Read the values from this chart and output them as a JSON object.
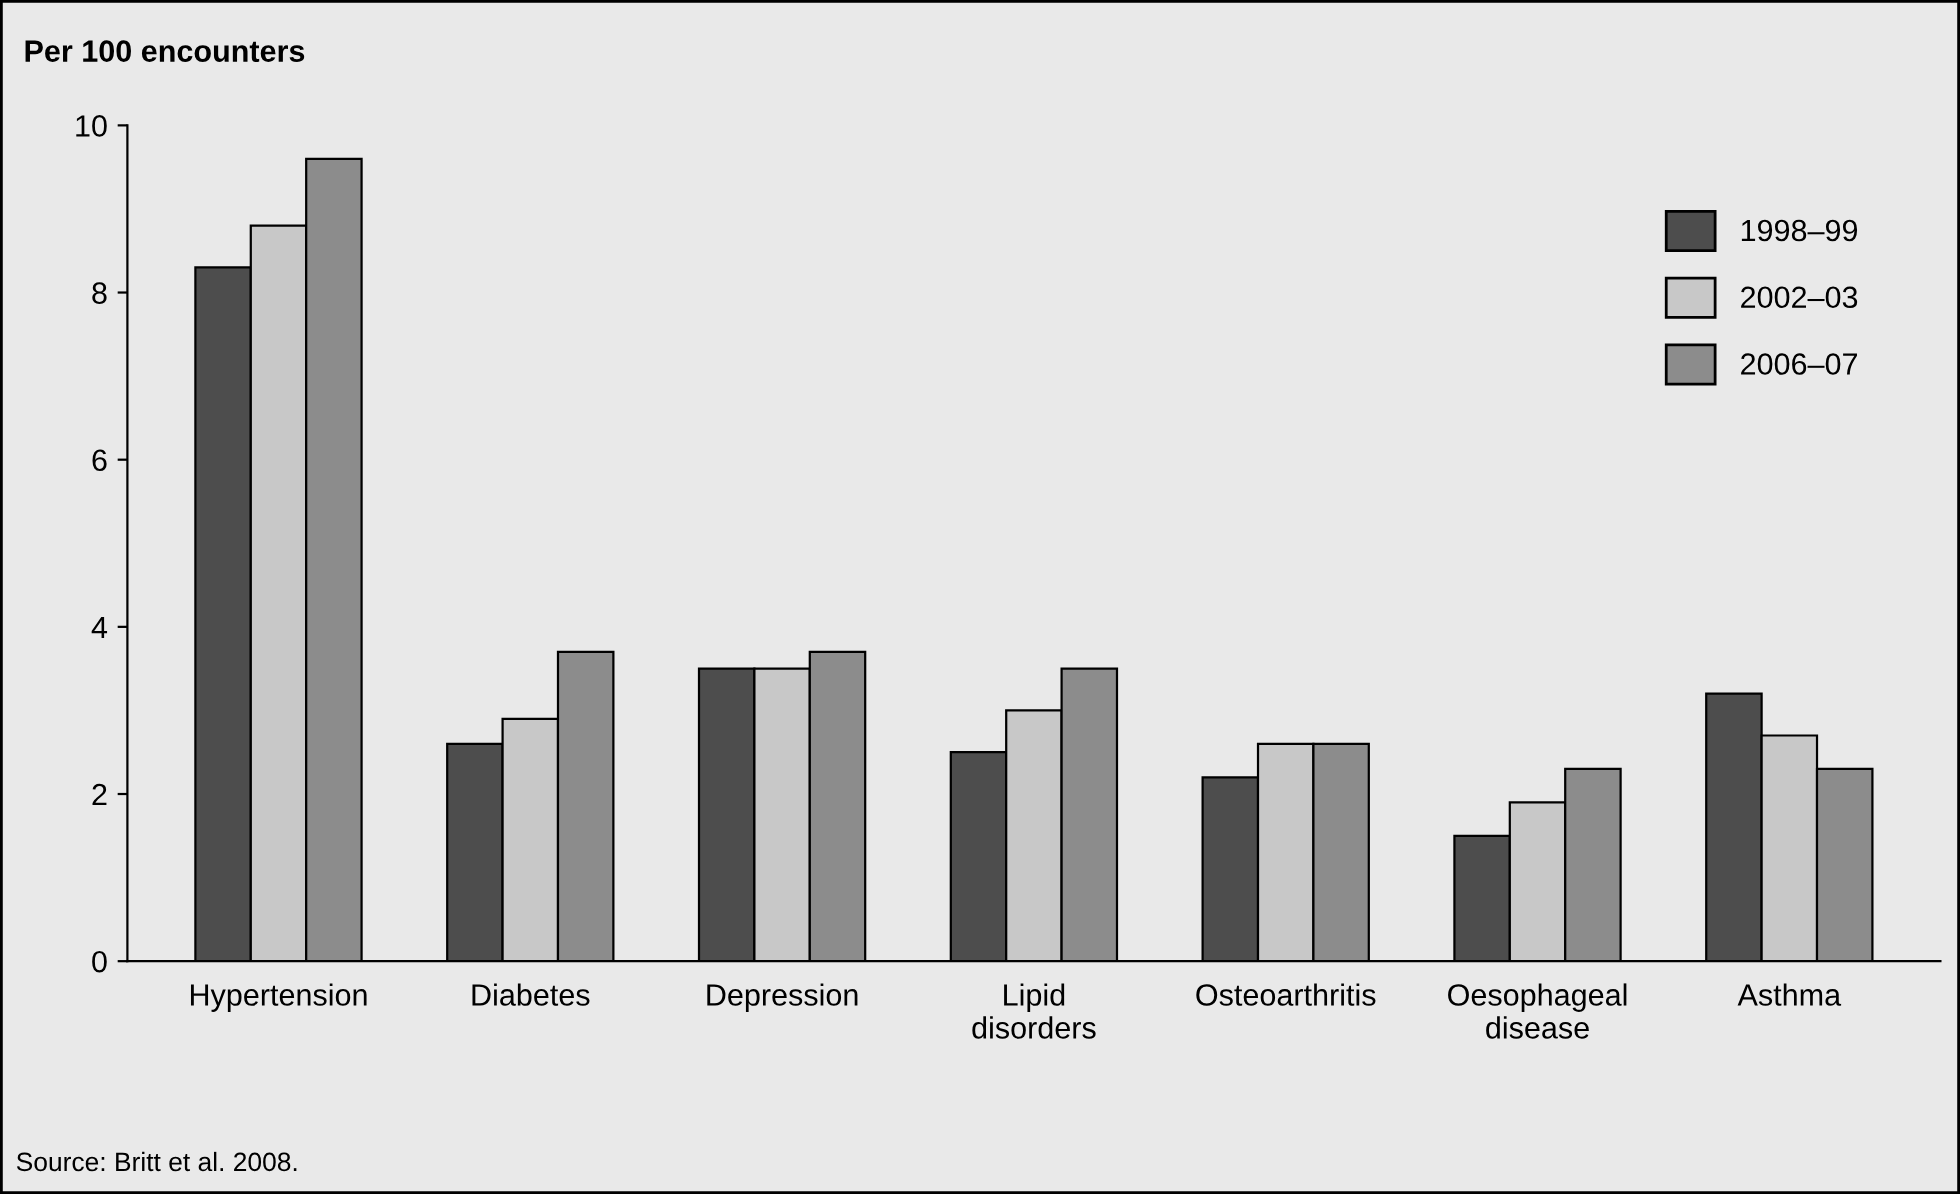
{
  "chart_data": {
    "type": "bar",
    "title": "Per 100 encounters",
    "categories": [
      "Hypertension",
      "Diabetes",
      "Depression",
      "Lipid\ndisorders",
      "Osteoarthritis",
      "Oesophageal\ndisease",
      "Asthma"
    ],
    "series": [
      {
        "name": "1998–99",
        "color": "#4d4d4d",
        "values": [
          8.3,
          2.6,
          3.5,
          2.5,
          2.2,
          1.5,
          3.2
        ]
      },
      {
        "name": "2002–03",
        "color": "#c8c8c8",
        "values": [
          8.8,
          2.9,
          3.5,
          3.0,
          2.6,
          1.9,
          2.7
        ]
      },
      {
        "name": "2006–07",
        "color": "#8c8c8c",
        "values": [
          9.6,
          3.7,
          3.7,
          3.5,
          2.6,
          2.3,
          2.3
        ]
      }
    ],
    "ylim": [
      0,
      10
    ],
    "yticks": [
      0,
      2,
      4,
      6,
      8,
      10
    ],
    "grid": false,
    "legend": "top right",
    "annotations": [
      "Source: Britt et al. 2008."
    ]
  }
}
